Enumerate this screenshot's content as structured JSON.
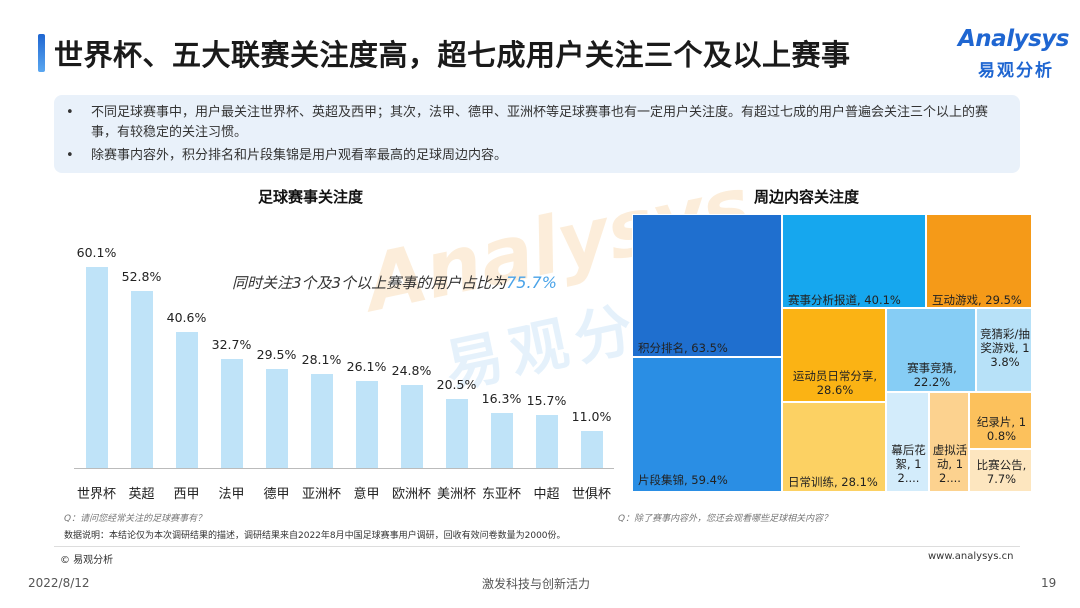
{
  "header": {
    "title": "世界杯、五大联赛关注度高，超七成用户关注三个及以上赛事",
    "logo_en": "Analysys",
    "logo_cn": "易观分析"
  },
  "summary": {
    "bullet": "•",
    "points": [
      "不同足球赛事中，用户最关注世界杯、英超及西甲；其次，法甲、德甲、亚洲杯等足球赛事也有一定用户关注度。有超过七成的用户普遍会关注三个以上的赛事，有较稳定的关注习惯。",
      "除赛事内容外，积分排名和片段集锦是用户观看率最高的足球周边内容。"
    ]
  },
  "chart_data": [
    {
      "type": "bar",
      "title": "足球赛事关注度",
      "categories": [
        "世界杯",
        "英超",
        "西甲",
        "法甲",
        "德甲",
        "亚洲杯",
        "意甲",
        "欧洲杯",
        "美洲杯",
        "东亚杯",
        "中超",
        "世俱杯"
      ],
      "values": [
        60.1,
        52.8,
        40.6,
        32.7,
        29.5,
        28.1,
        26.1,
        24.8,
        20.5,
        16.3,
        15.7,
        11.0
      ],
      "value_labels": [
        "60.1%",
        "52.8%",
        "40.6%",
        "32.7%",
        "29.5%",
        "28.1%",
        "26.1%",
        "24.8%",
        "20.5%",
        "16.3%",
        "15.7%",
        "11.0%"
      ],
      "ylim": [
        0,
        70
      ],
      "bar_color": "#bfe3f8",
      "annotation_prefix": "同时关注3个及3个以上赛事的用户占比为",
      "annotation_value": "75.7%",
      "question": "Q：请问您经常关注的足球赛事有？"
    },
    {
      "type": "treemap",
      "title": "周边内容关注度",
      "cells": [
        {
          "label": "积分排名, 63.5%",
          "value": 63.5,
          "color": "#1f6fcf"
        },
        {
          "label": "片段集锦, 59.4%",
          "value": 59.4,
          "color": "#2a8ee4"
        },
        {
          "label": "赛事分析报道, 40.1%",
          "value": 40.1,
          "color": "#16a7ee"
        },
        {
          "label": "互动游戏, 29.5%",
          "value": 29.5,
          "color": "#f59a18"
        },
        {
          "label": "运动员日常分享, 28.6%",
          "value": 28.6,
          "color": "#fbb314"
        },
        {
          "label": "日常训练, 28.1%",
          "value": 28.1,
          "color": "#fcd163"
        },
        {
          "label": "赛事竞猜, 22.2%",
          "value": 22.2,
          "color": "#86cdf5"
        },
        {
          "label": "竞猜彩/抽奖游戏, 13.8%",
          "value": 13.8,
          "color": "#b7e1f8"
        },
        {
          "label": "幕后花絮, 12....",
          "value": 12.5,
          "color": "#d3ecfb"
        },
        {
          "label": "虚拟活动, 12....",
          "value": 12.2,
          "color": "#fcd28f"
        },
        {
          "label": "纪录片, 10.8%",
          "value": 10.8,
          "color": "#fcc15c"
        },
        {
          "label": "比赛公告, 7.7%",
          "value": 7.7,
          "color": "#fde6bf"
        }
      ],
      "question": "Q：除了赛事内容外，您还会观看哪些足球相关内容？"
    }
  ],
  "footnote": "数据说明：本结论仅为本次调研结果的描述，调研结果来自2022年8月中国足球赛事用户调研，回收有效问卷数量为2000份。",
  "footer": {
    "copyright": "© 易观分析",
    "website": "www.analysys.cn",
    "date": "2022/8/12",
    "slogan": "激发科技与创新活力",
    "page": "19"
  },
  "watermark": {
    "en": "Analysys",
    "cn": "易观分析"
  }
}
